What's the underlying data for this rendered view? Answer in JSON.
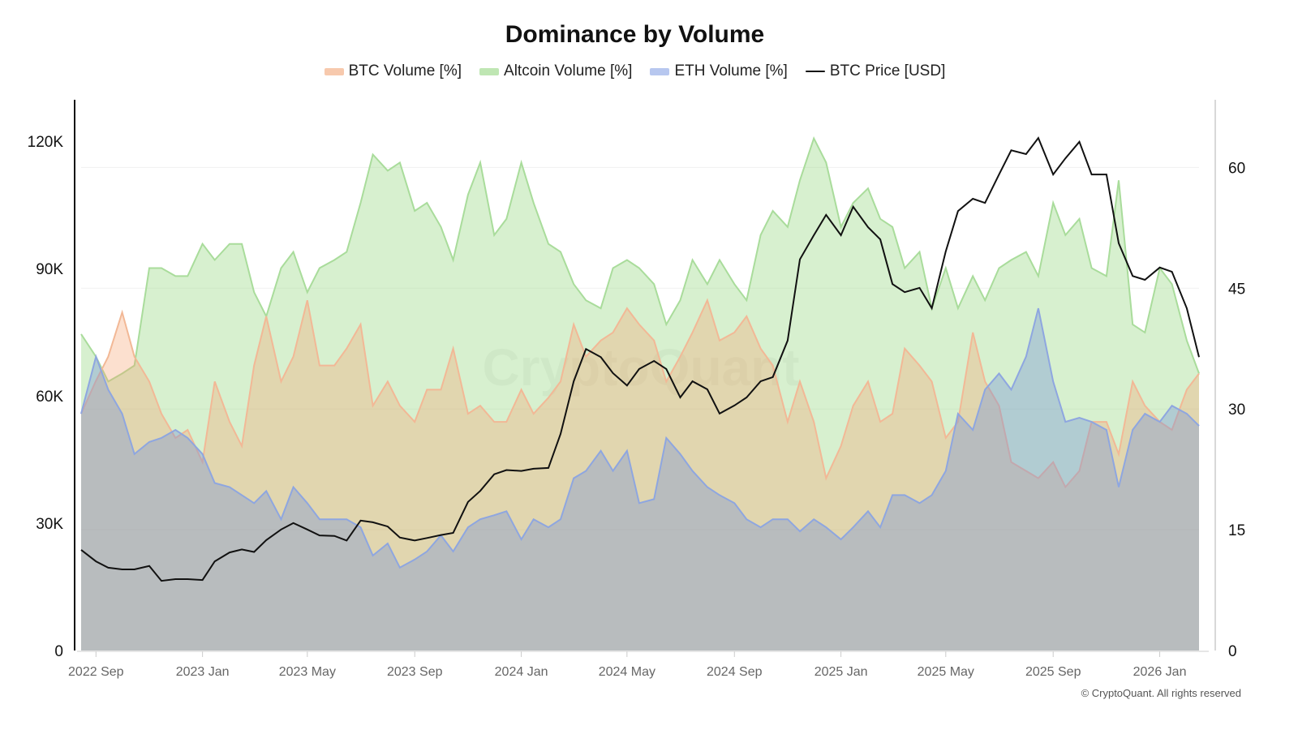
{
  "chart_data": {
    "type": "area",
    "title": "Dominance by Volume",
    "legend_placement": "top",
    "grid": true,
    "x": [
      "2022-08-15",
      "2022-09-01",
      "2022-09-15",
      "2022-10-01",
      "2022-10-15",
      "2022-11-01",
      "2022-11-15",
      "2022-12-01",
      "2022-12-15",
      "2023-01-01",
      "2023-01-15",
      "2023-02-01",
      "2023-02-15",
      "2023-03-01",
      "2023-03-15",
      "2023-04-01",
      "2023-04-15",
      "2023-05-01",
      "2023-05-15",
      "2023-06-01",
      "2023-06-15",
      "2023-07-01",
      "2023-07-15",
      "2023-08-01",
      "2023-08-15",
      "2023-09-01",
      "2023-09-15",
      "2023-10-01",
      "2023-10-15",
      "2023-11-01",
      "2023-11-15",
      "2023-12-01",
      "2023-12-15",
      "2024-01-01",
      "2024-01-15",
      "2024-02-01",
      "2024-02-15",
      "2024-03-01",
      "2024-03-15",
      "2024-04-01",
      "2024-04-15",
      "2024-05-01",
      "2024-05-15",
      "2024-06-01",
      "2024-06-15",
      "2024-07-01",
      "2024-07-15",
      "2024-08-01",
      "2024-08-15",
      "2024-09-01",
      "2024-09-15",
      "2024-10-01",
      "2024-10-15",
      "2024-11-01",
      "2024-11-15",
      "2024-12-01",
      "2024-12-15",
      "2025-01-01",
      "2025-01-15",
      "2025-02-01",
      "2025-02-15",
      "2025-03-01",
      "2025-03-15",
      "2025-04-01",
      "2025-04-15",
      "2025-05-01",
      "2025-05-15",
      "2025-06-01",
      "2025-06-15",
      "2025-07-01",
      "2025-07-15",
      "2025-08-01",
      "2025-08-15",
      "2025-09-01",
      "2025-09-15",
      "2025-10-01",
      "2025-10-15",
      "2025-11-01",
      "2025-11-15",
      "2025-12-01",
      "2025-12-15",
      "2026-01-01",
      "2026-01-15",
      "2026-02-01",
      "2026-02-15"
    ],
    "x_range": [
      "2022-08-15",
      "2026-02-15"
    ],
    "x_ticks": [
      {
        "date": "2022-09-01",
        "label": "2022 Sep"
      },
      {
        "date": "2023-01-01",
        "label": "2023 Jan"
      },
      {
        "date": "2023-05-01",
        "label": "2023 May"
      },
      {
        "date": "2023-09-01",
        "label": "2023 Sep"
      },
      {
        "date": "2024-01-01",
        "label": "2024 Jan"
      },
      {
        "date": "2024-05-01",
        "label": "2024 May"
      },
      {
        "date": "2024-09-01",
        "label": "2024 Sep"
      },
      {
        "date": "2025-01-01",
        "label": "2025 Jan"
      },
      {
        "date": "2025-05-01",
        "label": "2025 May"
      },
      {
        "date": "2025-09-01",
        "label": "2025 Sep"
      },
      {
        "date": "2026-01-01",
        "label": "2026 Jan"
      }
    ],
    "y_left": {
      "range": [
        0,
        129700
      ],
      "ticks": [
        0,
        30000,
        60000,
        90000,
        120000
      ],
      "tick_labels": [
        "0",
        "30K",
        "60K",
        "90K",
        "120K"
      ]
    },
    "y_right": {
      "range": [
        0,
        68.4
      ],
      "ticks": [
        0,
        15,
        30,
        45,
        60
      ],
      "tick_labels": [
        "0",
        "15",
        "30",
        "45",
        "60"
      ]
    },
    "series": [
      {
        "name": "Altcoin Volume [%]",
        "axis": "right",
        "kind": "area",
        "color": "#9fd88f",
        "values": [
          39.3,
          36.5,
          33.4,
          34.4,
          35.4,
          47.5,
          47.5,
          46.5,
          46.5,
          50.5,
          48.5,
          50.5,
          50.5,
          44.5,
          41.5,
          47.5,
          49.5,
          44.5,
          47.5,
          48.5,
          49.5,
          55.6,
          61.6,
          59.6,
          60.6,
          54.6,
          55.6,
          52.6,
          48.5,
          56.6,
          60.6,
          51.6,
          53.6,
          60.6,
          55.6,
          50.5,
          49.5,
          45.5,
          43.5,
          42.5,
          47.5,
          48.5,
          47.5,
          45.5,
          40.5,
          43.5,
          48.5,
          45.5,
          48.5,
          45.5,
          43.5,
          51.6,
          54.6,
          52.6,
          58.4,
          63.6,
          60.6,
          52.6,
          55.6,
          57.4,
          53.6,
          52.6,
          47.5,
          49.5,
          42.5,
          47.5,
          42.5,
          46.5,
          43.5,
          47.5,
          48.5,
          49.5,
          46.5,
          55.6,
          51.6,
          53.6,
          47.5,
          46.5,
          58.4,
          40.5,
          39.5,
          47.5,
          45.5,
          38.5,
          34.4
        ]
      },
      {
        "name": "BTC Volume [%]",
        "axis": "right",
        "kind": "area",
        "color": "#f3ad86",
        "values": [
          29.4,
          33.5,
          36.5,
          42.0,
          36.5,
          33.4,
          29.4,
          26.4,
          27.4,
          23.4,
          33.4,
          28.4,
          25.4,
          35.4,
          41.5,
          33.4,
          36.5,
          43.5,
          35.4,
          35.4,
          37.5,
          40.5,
          30.4,
          33.4,
          30.4,
          28.4,
          32.4,
          32.4,
          37.5,
          29.4,
          30.4,
          28.4,
          28.4,
          32.4,
          29.4,
          31.4,
          33.4,
          40.5,
          36.5,
          38.5,
          39.5,
          42.5,
          40.5,
          38.5,
          33.4,
          36.5,
          39.5,
          43.5,
          38.5,
          39.5,
          41.5,
          37.5,
          35.4,
          28.4,
          33.4,
          28.4,
          21.4,
          25.4,
          30.4,
          33.4,
          28.4,
          29.4,
          37.5,
          35.4,
          33.4,
          26.4,
          28.4,
          39.5,
          33.4,
          30.4,
          23.4,
          22.3,
          21.4,
          23.4,
          20.3,
          22.3,
          28.4,
          28.4,
          24.4,
          33.4,
          30.4,
          28.4,
          27.4,
          32.4,
          34.4
        ]
      },
      {
        "name": "ETH Volume [%]",
        "axis": "right",
        "kind": "area",
        "color": "#8fa8e2",
        "values": [
          29.4,
          36.5,
          32.4,
          29.4,
          24.4,
          25.9,
          26.4,
          27.4,
          26.4,
          24.4,
          20.8,
          20.3,
          19.3,
          18.3,
          19.8,
          16.3,
          20.3,
          18.3,
          16.3,
          16.3,
          16.3,
          15.3,
          11.8,
          13.3,
          10.3,
          11.3,
          12.3,
          14.3,
          12.3,
          15.3,
          16.3,
          16.8,
          17.3,
          13.8,
          16.3,
          15.3,
          16.3,
          21.4,
          22.3,
          24.8,
          22.3,
          24.8,
          18.3,
          18.8,
          26.4,
          24.4,
          22.3,
          20.3,
          19.3,
          18.3,
          16.3,
          15.3,
          16.3,
          16.3,
          14.8,
          16.3,
          15.3,
          13.8,
          15.3,
          17.3,
          15.3,
          19.3,
          19.3,
          18.3,
          19.3,
          22.3,
          29.4,
          27.4,
          32.4,
          34.4,
          32.4,
          36.5,
          42.5,
          33.4,
          28.4,
          28.9,
          28.4,
          27.4,
          20.3,
          27.4,
          29.4,
          28.4,
          30.4,
          29.4,
          27.9
        ]
      },
      {
        "name": "BTC Price [USD]",
        "axis": "left",
        "kind": "line",
        "color": "#111111",
        "values": [
          23700,
          21000,
          19500,
          19100,
          19100,
          19900,
          16400,
          16800,
          16800,
          16600,
          21000,
          23100,
          23800,
          23200,
          26000,
          28500,
          30000,
          28500,
          27100,
          27000,
          25900,
          30600,
          30200,
          29200,
          26600,
          25900,
          26500,
          27200,
          27700,
          35000,
          37600,
          41500,
          42500,
          42300,
          42800,
          43000,
          51000,
          63400,
          71000,
          69100,
          65300,
          62400,
          66300,
          68200,
          66300,
          59600,
          63400,
          61500,
          55800,
          57700,
          59600,
          63400,
          64400,
          73000,
          92100,
          97800,
          102600,
          97800,
          104500,
          99700,
          96800,
          86300,
          84400,
          85400,
          80600,
          94000,
          103500,
          106400,
          105400,
          112100,
          117800,
          116900,
          120700,
          112100,
          115900,
          119800,
          112100,
          112100,
          95900,
          88200,
          87300,
          90200,
          89200,
          80600,
          69100
        ]
      }
    ],
    "watermark": "CryptoQuant",
    "copyright": "© CryptoQuant. All rights reserved"
  }
}
